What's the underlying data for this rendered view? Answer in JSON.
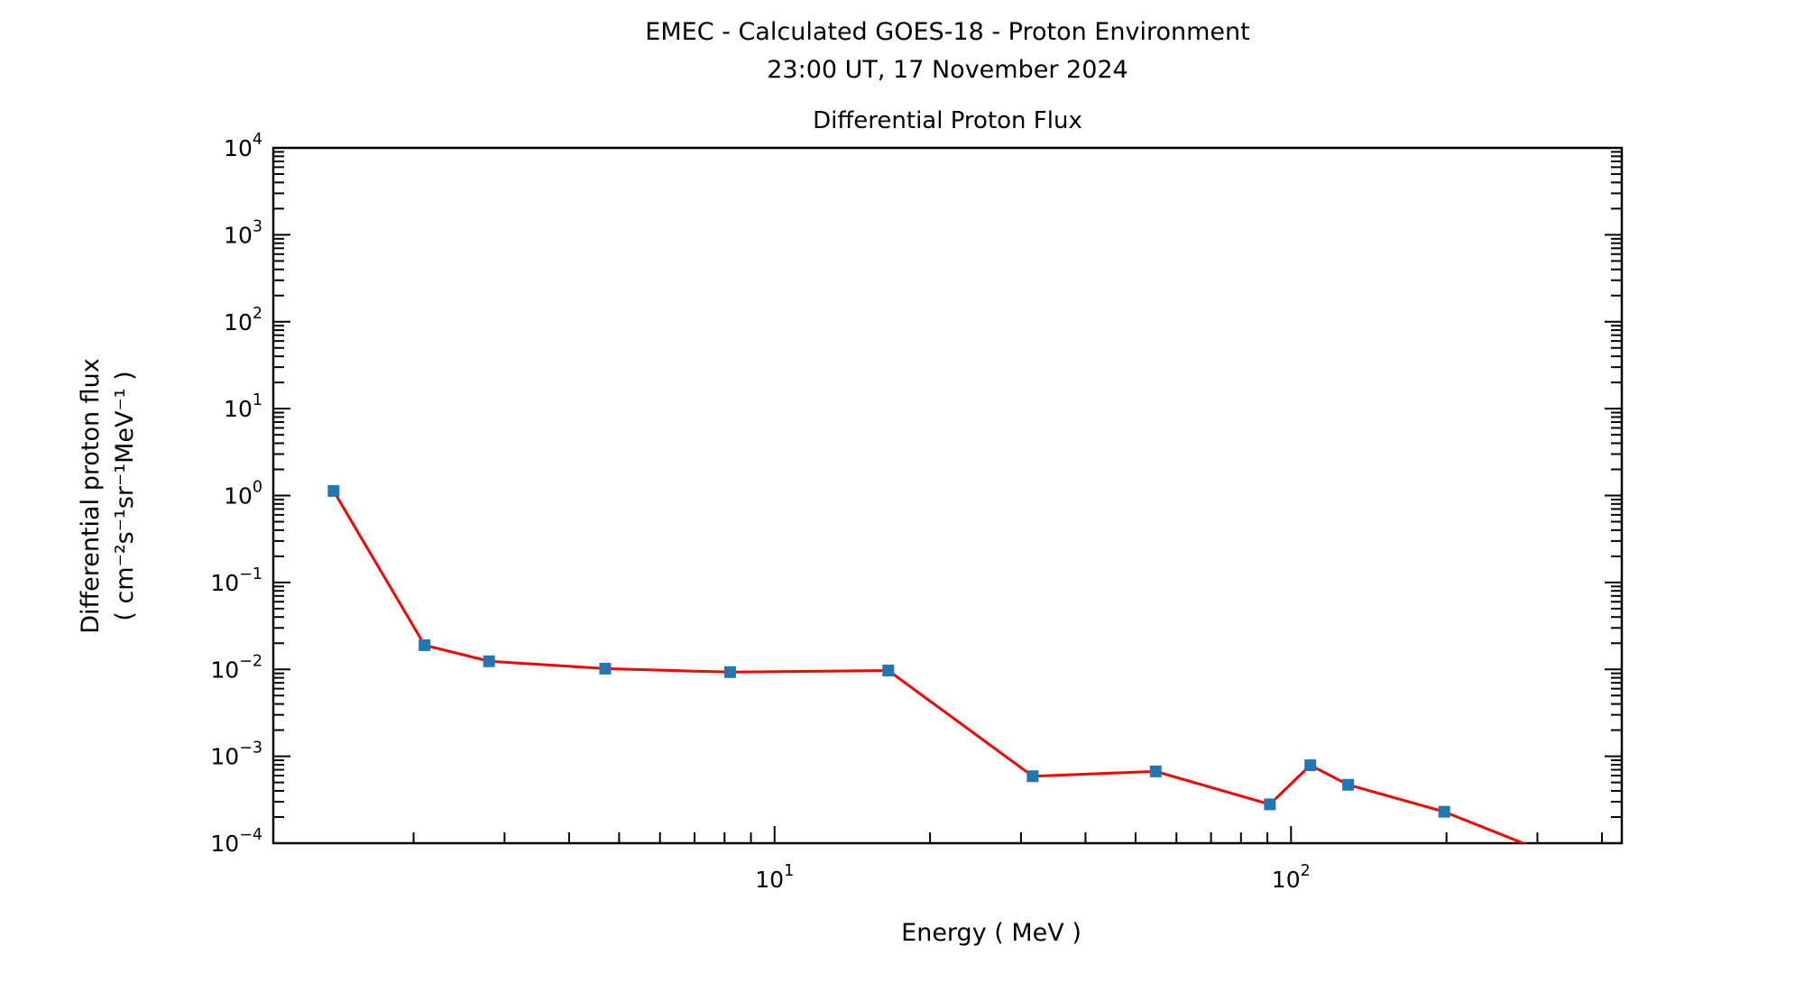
{
  "figure": {
    "title_line1": "EMEC - Calculated GOES-18 - Proton Environment",
    "title_line2": "23:00 UT, 17 November 2024",
    "axes_title": "Differential Proton Flux",
    "x_axis_label": "Energy ( MeV )",
    "y_axis_label_line1": "Differential proton flux",
    "y_axis_label_line2": "( cm⁻²s⁻¹sr⁻¹MeV⁻¹ )",
    "background_color": "#ffffff",
    "text_color": "#000000",
    "spine_color": "#000000"
  },
  "chart_data": {
    "type": "line",
    "title": "Differential Proton Flux",
    "xlabel": "Energy ( MeV )",
    "ylabel": "Differential proton flux ( cm⁻²s⁻¹sr⁻¹MeV⁻¹ )",
    "x_scale": "log",
    "y_scale": "log",
    "xlim": [
      1.07,
      437
    ],
    "ylim": [
      0.0001,
      10000
    ],
    "grid": false,
    "legend": "none",
    "x_major_tick_exponents": [
      1,
      2
    ],
    "x_tick_labels": [
      "10¹",
      "10²"
    ],
    "y_major_tick_exponents": [
      4,
      3,
      2,
      1,
      0,
      -1,
      -2,
      -3,
      -4
    ],
    "y_tick_labels": [
      "10⁴",
      "10³",
      "10²",
      "10¹",
      "10⁰",
      "10⁻¹",
      "10⁻²",
      "10⁻³",
      "10⁻⁴"
    ],
    "line_color": "#ff0000",
    "line_width": 3,
    "marker_color": "#2077b4",
    "marker_shape": "square",
    "marker_size": 13,
    "ticks_on_sides": [
      "left",
      "bottom",
      "right"
    ],
    "series": [
      {
        "name": "Differential proton flux",
        "x": [
          1.4,
          2.1,
          2.8,
          4.7,
          8.2,
          16.6,
          31.6,
          54.7,
          91,
          109,
          129,
          198,
          371
        ],
        "y": [
          1.13,
          0.019,
          0.0124,
          0.0102,
          0.0093,
          0.0097,
          0.00059,
          0.00067,
          0.00028,
          0.00079,
          0.00047,
          0.00023,
          5.2e-05
        ]
      }
    ]
  }
}
